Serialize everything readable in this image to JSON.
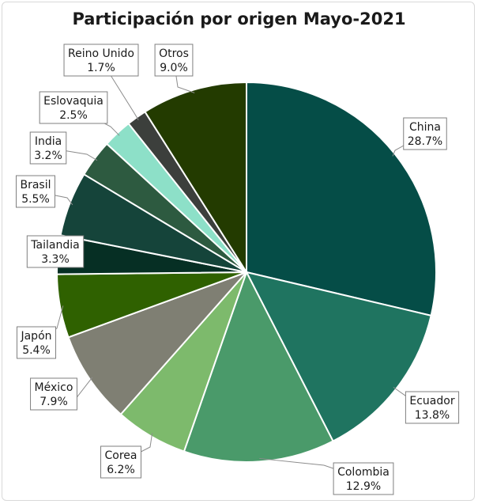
{
  "chart_data": {
    "type": "pie",
    "title": "Participación por origen Mayo-2021",
    "slices": [
      {
        "name": "China",
        "value": 28.7,
        "label": "28.7%",
        "color": "#054d47"
      },
      {
        "name": "Ecuador",
        "value": 13.8,
        "label": "13.8%",
        "color": "#1f7460"
      },
      {
        "name": "Colombia",
        "value": 12.9,
        "label": "12.9%",
        "color": "#4a9a6a"
      },
      {
        "name": "Corea",
        "value": 6.2,
        "label": "6.2%",
        "color": "#7dba6c"
      },
      {
        "name": "México",
        "value": 7.9,
        "label": "7.9%",
        "color": "#7f7f73"
      },
      {
        "name": "Japón",
        "value": 5.4,
        "label": "5.4%",
        "color": "#2f6100"
      },
      {
        "name": "Tailandia",
        "value": 3.3,
        "label": "3.3%",
        "color": "#062f24"
      },
      {
        "name": "Brasil",
        "value": 5.5,
        "label": "5.5%",
        "color": "#15443a"
      },
      {
        "name": "India",
        "value": 3.2,
        "label": "3.2%",
        "color": "#2d5a40"
      },
      {
        "name": "Eslovaquia",
        "value": 2.5,
        "label": "2.5%",
        "color": "#8de0c8"
      },
      {
        "name": "Reino Unido",
        "value": 1.7,
        "label": "1.7%",
        "color": "#3c3f3c"
      },
      {
        "name": "Otros",
        "value": 9.0,
        "label": "9.0%",
        "color": "#233b00"
      }
    ]
  }
}
